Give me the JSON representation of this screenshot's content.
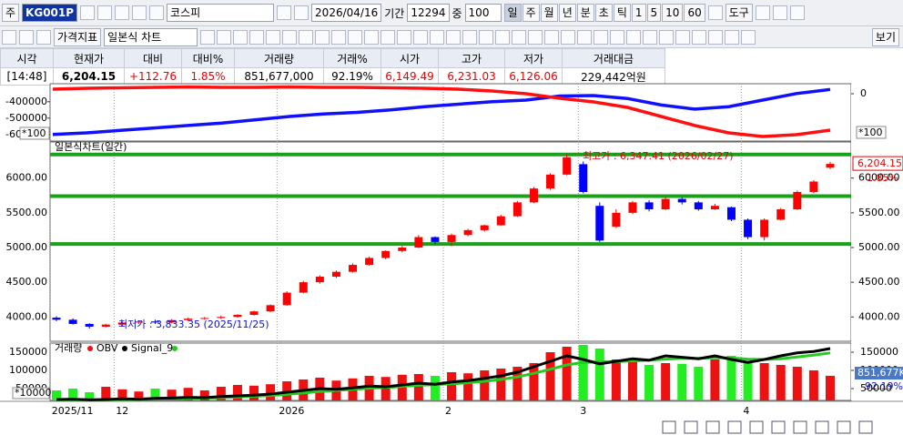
{
  "toolbar": {
    "market": "주",
    "code": "KG001P",
    "name": "코스피",
    "date": "2026/04/16",
    "period_label": "기간",
    "period": "12294",
    "count_label": "중",
    "count": "100",
    "intervals": [
      "일",
      "주",
      "월",
      "년",
      "분",
      "초",
      "틱",
      "1",
      "5",
      "10",
      "60"
    ],
    "tools": "도구"
  },
  "toolbar2": {
    "indicator": "가격지표",
    "chart_type": "일본식 차트",
    "view": "보기"
  },
  "quote": {
    "headers": [
      "시각",
      "현재가",
      "대비",
      "대비%",
      "거래량",
      "거래%",
      "시가",
      "고가",
      "저가",
      "거래대금"
    ],
    "values": [
      "[14:48]",
      "6,204.15",
      "+112.76",
      "1.85%",
      "851,677,000",
      "92.19%",
      "6,149.49",
      "6,231.03",
      "6,126.06",
      "229,442억원"
    ]
  },
  "chart": {
    "x_ticks": [
      {
        "value": -0.4,
        "label": "2025/11"
      },
      {
        "value": 3.5,
        "label": "12"
      },
      {
        "value": 13.4,
        "label": "2026"
      },
      {
        "value": 23.5,
        "label": "2"
      },
      {
        "value": 31.7,
        "label": "3"
      },
      {
        "value": 41.6,
        "label": "4"
      }
    ],
    "top": {
      "ylim": [
        -640000,
        -290000
      ],
      "yticks": [
        -400000,
        -500000,
        -600000
      ],
      "y2lim": [
        -5200,
        1100
      ],
      "y2ticks": [
        0
      ],
      "unit": "*100",
      "series": [
        {
          "color": "#1010ff",
          "values": [
            -600000,
            -590000,
            -575000,
            -560000,
            -545000,
            -530000,
            -510000,
            -490000,
            -475000,
            -465000,
            -450000,
            -430000,
            -415000,
            -400000,
            -390000,
            -365000,
            -362000,
            -380000,
            -420000,
            -445000,
            -430000,
            -390000,
            -350000,
            -325000
          ]
        },
        {
          "color": "#ff1010",
          "axis": "y2",
          "values": [
            500,
            600,
            650,
            700,
            750,
            700,
            700,
            750,
            700,
            700,
            650,
            600,
            500,
            300,
            0,
            -500,
            -900,
            -1500,
            -2500,
            -3500,
            -4300,
            -4700,
            -4500,
            -4000
          ]
        }
      ]
    },
    "price": {
      "title": "일본식차트(일간)",
      "ylim": [
        3650,
        6520
      ],
      "yticks": [
        {
          "value": 4000,
          "label": "4000.00"
        },
        {
          "value": 4500,
          "label": "4500.00"
        },
        {
          "value": 5000,
          "label": "5000.00"
        },
        {
          "value": 5500,
          "label": "5500.00"
        },
        {
          "value": 6000,
          "label": "6000.00"
        }
      ],
      "up_color": "#ff0000",
      "down_color": "#0000ff",
      "level_color": "#1aa01a",
      "levels": [
        6340,
        5740,
        5050
      ],
      "candles": [
        [
          3990,
          4010,
          3940,
          3960
        ],
        [
          3960,
          3980,
          3890,
          3900
        ],
        [
          3900,
          3910,
          3833.35,
          3860
        ],
        [
          3860,
          3900,
          3850,
          3890
        ],
        [
          3890,
          3930,
          3870,
          3920
        ],
        [
          3920,
          3950,
          3900,
          3935
        ],
        [
          3935,
          3960,
          3900,
          3920
        ],
        [
          3920,
          3970,
          3910,
          3955
        ],
        [
          3955,
          3990,
          3940,
          3975
        ],
        [
          3975,
          4000,
          3960,
          3985
        ],
        [
          3985,
          4020,
          3970,
          4000
        ],
        [
          4000,
          4040,
          3990,
          4030
        ],
        [
          4030,
          4090,
          4020,
          4080
        ],
        [
          4080,
          4180,
          4070,
          4170
        ],
        [
          4170,
          4370,
          4160,
          4350
        ],
        [
          4350,
          4520,
          4340,
          4500
        ],
        [
          4500,
          4600,
          4480,
          4580
        ],
        [
          4580,
          4670,
          4560,
          4650
        ],
        [
          4650,
          4770,
          4640,
          4750
        ],
        [
          4750,
          4870,
          4740,
          4850
        ],
        [
          4850,
          4960,
          4830,
          4950
        ],
        [
          4950,
          5020,
          4930,
          5000
        ],
        [
          5000,
          5180,
          4990,
          5150
        ],
        [
          5150,
          5160,
          5050,
          5080
        ],
        [
          5080,
          5200,
          5020,
          5180
        ],
        [
          5180,
          5270,
          5160,
          5250
        ],
        [
          5250,
          5330,
          5230,
          5320
        ],
        [
          5320,
          5470,
          5310,
          5450
        ],
        [
          5450,
          5670,
          5440,
          5650
        ],
        [
          5650,
          5870,
          5640,
          5850
        ],
        [
          5850,
          6070,
          5830,
          6050
        ],
        [
          6050,
          6347.41,
          6040,
          6300
        ],
        [
          6200,
          6240,
          5780,
          5800
        ],
        [
          5600,
          5650,
          5080,
          5100
        ],
        [
          5300,
          5550,
          5280,
          5500
        ],
        [
          5500,
          5670,
          5480,
          5650
        ],
        [
          5650,
          5680,
          5520,
          5550
        ],
        [
          5550,
          5730,
          5540,
          5700
        ],
        [
          5700,
          5720,
          5620,
          5650
        ],
        [
          5650,
          5670,
          5530,
          5550
        ],
        [
          5550,
          5630,
          5540,
          5600
        ],
        [
          5580,
          5590,
          5380,
          5400
        ],
        [
          5400,
          5420,
          5120,
          5150
        ],
        [
          5150,
          5420,
          5100,
          5400
        ],
        [
          5400,
          5570,
          5390,
          5550
        ],
        [
          5550,
          5820,
          5540,
          5800
        ],
        [
          5800,
          5970,
          5780,
          5950
        ],
        [
          6149.49,
          6231.03,
          6126.06,
          6204.15
        ]
      ],
      "high_note": "최고가 : 6,347.41 (2026/02/27)",
      "low_note": "최저가 : 3,833.35 (2025/11/25)",
      "last": {
        "value": 6204.15,
        "label": "6,204.15"
      },
      "change": "1.85%"
    },
    "volume": {
      "title": "거래량",
      "obv_name": "OBV",
      "signal_name": "Signal_9",
      "obv_color": "#000000",
      "signal_color": "#22cc22",
      "up_color": "#ee1111",
      "down_color": "#22ee22",
      "ylim": [
        17500,
        175000
      ],
      "yticks": [
        50000,
        100000,
        150000
      ],
      "unit": "*10000",
      "values": [
        45000,
        50000,
        40000,
        55000,
        48000,
        42000,
        50000,
        47000,
        52000,
        45000,
        55000,
        60000,
        58000,
        62000,
        70000,
        75000,
        80000,
        72000,
        78000,
        85000,
        82000,
        88000,
        90000,
        85000,
        95000,
        92000,
        100000,
        105000,
        110000,
        120000,
        150000,
        165000,
        170000,
        160000,
        130000,
        125000,
        115000,
        120000,
        118000,
        110000,
        130000,
        140000,
        125000,
        120000,
        115000,
        110000,
        100000,
        85167.7
      ],
      "obv": [
        20000,
        21000,
        19000,
        20000,
        22000,
        21000,
        23000,
        24000,
        26000,
        25000,
        28000,
        30000,
        32000,
        35000,
        40000,
        45000,
        50000,
        48000,
        52000,
        57000,
        55000,
        60000,
        65000,
        62000,
        68000,
        72000,
        78000,
        85000,
        95000,
        110000,
        125000,
        140000,
        130000,
        118000,
        125000,
        132000,
        128000,
        140000,
        136000,
        132000,
        140000,
        130000,
        122000,
        130000,
        140000,
        148000,
        152000,
        160000
      ],
      "signal": [
        19000,
        19500,
        19500,
        19500,
        20000,
        20500,
        21000,
        22000,
        23000,
        24000,
        25000,
        27000,
        29000,
        31000,
        34000,
        38000,
        42000,
        45000,
        48000,
        51000,
        53000,
        56000,
        59000,
        61000,
        63000,
        66000,
        70000,
        75000,
        82000,
        92000,
        103000,
        115000,
        122000,
        123000,
        124000,
        126000,
        128000,
        131000,
        133000,
        133000,
        135000,
        134000,
        131000,
        130000,
        132000,
        137000,
        142000,
        148000
      ],
      "last": {
        "value": 85167.7,
        "label": "851,677K"
      },
      "ratio": "92.19%"
    }
  }
}
